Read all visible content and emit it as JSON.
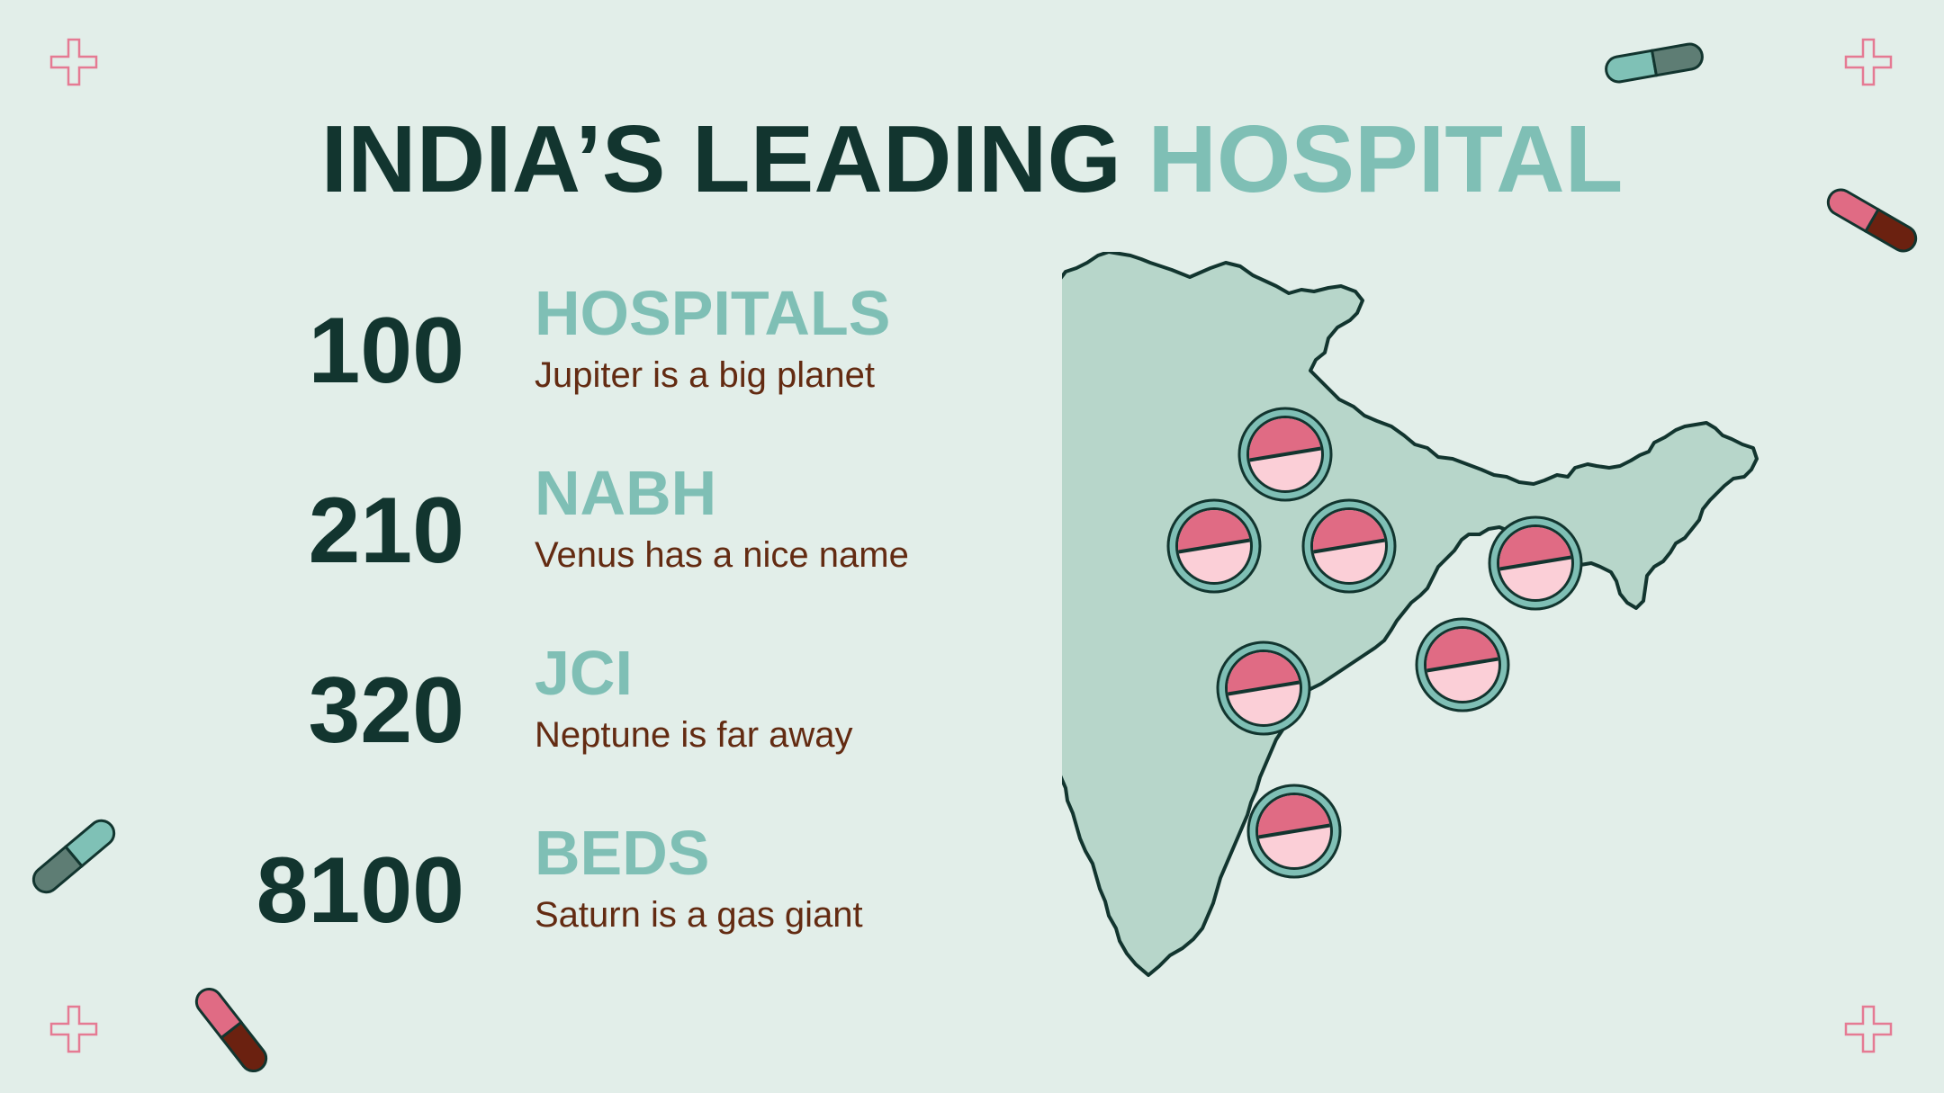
{
  "title": {
    "part1": "INDIA’S LEADING",
    "part2": "HOSPITAL"
  },
  "stats": [
    {
      "number": "100",
      "label": "HOSPITALS",
      "description": "Jupiter is a big planet"
    },
    {
      "number": "210",
      "label": "NABH",
      "description": "Venus has a nice name"
    },
    {
      "number": "320",
      "label": "JCI",
      "description": "Neptune is far away"
    },
    {
      "number": "8100",
      "label": "BEDS",
      "description": "Saturn is a gas giant"
    }
  ],
  "map": {
    "region": "India",
    "markers": 7,
    "marker_icon": "pill-icon"
  },
  "colors": {
    "background": "#e2eee9",
    "dark": "#12352f",
    "accent": "#7fbfb5",
    "description": "#632b12",
    "map_fill": "#b7d6ca",
    "pink": "#e06b84",
    "light_pink": "#fbcfd7",
    "brown": "#6b2110"
  },
  "decorations": {
    "cross_icon": "plus-cross-icon",
    "capsule_icon": "capsule-icon"
  }
}
